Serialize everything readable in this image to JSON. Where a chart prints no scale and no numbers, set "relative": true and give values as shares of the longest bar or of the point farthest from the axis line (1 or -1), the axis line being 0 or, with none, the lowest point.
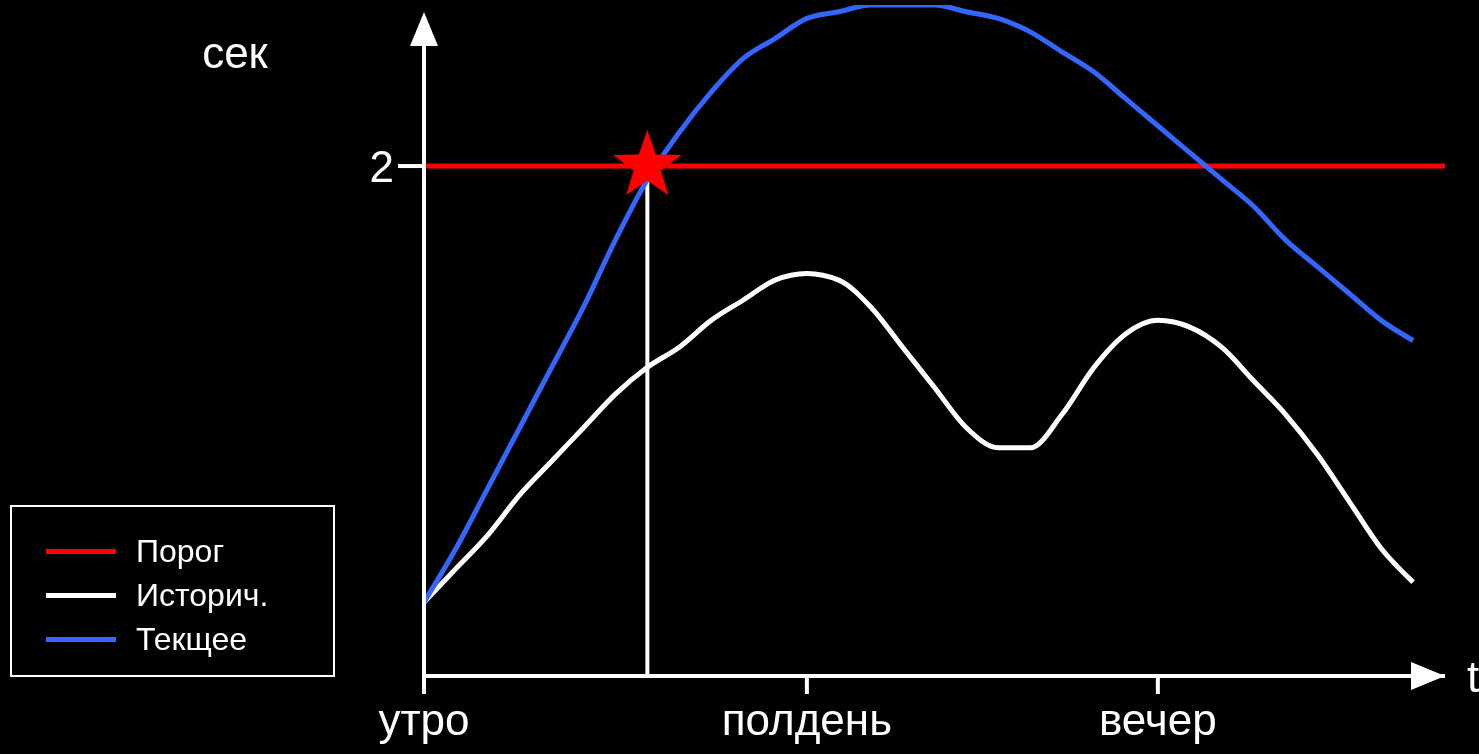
{
  "chart_data": {
    "type": "line",
    "relative": true,
    "ylabel": "сек",
    "xlabel": "t",
    "categories": [
      "утро",
      null,
      null,
      null,
      null,
      null,
      null,
      null,
      null,
      null,
      null,
      null,
      "полдень",
      null,
      null,
      null,
      null,
      null,
      null,
      null,
      null,
      null,
      null,
      "вечер",
      null,
      null,
      null,
      null,
      null,
      null,
      null,
      null,
      null
    ],
    "series": [
      {
        "name": "Порог",
        "color": "#ff0000",
        "values": [
          0.76,
          0.76,
          0.76,
          0.76,
          0.76,
          0.76,
          0.76,
          0.76,
          0.76,
          0.76,
          0.76,
          0.76,
          0.76,
          0.76,
          0.76,
          0.76,
          0.76,
          0.76,
          0.76,
          0.76,
          0.76,
          0.76,
          0.76,
          0.76,
          0.76,
          0.76,
          0.76,
          0.76,
          0.76,
          0.76,
          0.76,
          0.76,
          0.76
        ]
      },
      {
        "name": "Историч.",
        "color": "#ffffff",
        "values": [
          0.11,
          0.16,
          0.21,
          0.27,
          0.32,
          0.37,
          0.42,
          0.46,
          0.49,
          0.53,
          0.56,
          0.59,
          0.6,
          0.59,
          0.55,
          0.49,
          0.43,
          0.37,
          0.34,
          0.34,
          0.39,
          0.46,
          0.51,
          0.53,
          0.52,
          0.49,
          0.44,
          0.39,
          0.33,
          0.26,
          0.19,
          0.14,
          null
        ]
      },
      {
        "name": "Текщее",
        "color": "#3366ff",
        "values": [
          0.11,
          0.19,
          0.28,
          0.37,
          0.46,
          0.55,
          0.65,
          0.74,
          0.81,
          0.87,
          0.92,
          0.95,
          0.98,
          0.99,
          1,
          1,
          1,
          0.99,
          0.98,
          0.96,
          0.93,
          0.9,
          0.86,
          0.82,
          0.78,
          0.74,
          0.7,
          0.65,
          0.61,
          0.57,
          0.53,
          0.5,
          null
        ]
      },
      {
        "type": "scatter",
        "color": "#ff0000",
        "marker": "star",
        "values": [
          null,
          null,
          null,
          null,
          null,
          null,
          null,
          0.76,
          null,
          null,
          null,
          null,
          null,
          null,
          null,
          null,
          null,
          null,
          null,
          null,
          null,
          null,
          null,
          null,
          null,
          null,
          null,
          null,
          null,
          null,
          null,
          null,
          null
        ]
      }
    ],
    "annotations": [
      "2"
    ],
    "marker": "none",
    "line_style": "solid",
    "legend": "bottom left"
  }
}
